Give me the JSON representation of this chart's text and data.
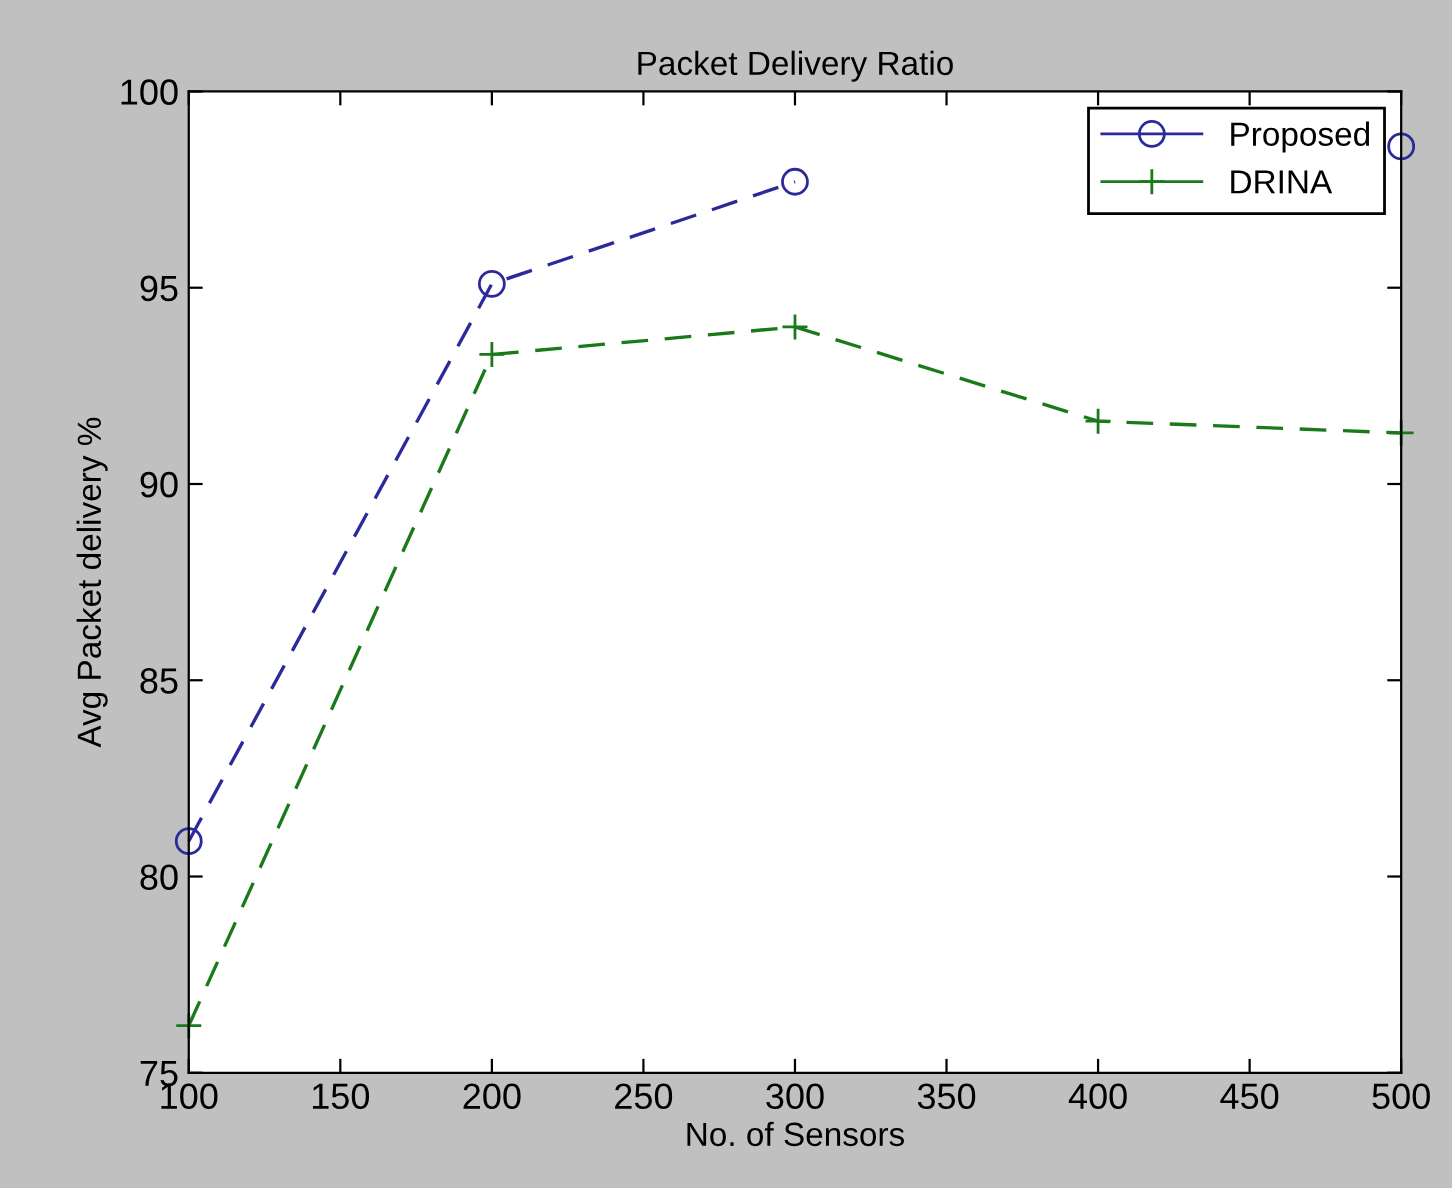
{
  "chart_data": {
    "type": "line",
    "title": "Packet Delivery Ratio",
    "xlabel": "No. of Sensors",
    "ylabel": "Avg Packet delivery %",
    "x": [
      100,
      200,
      300,
      400,
      500
    ],
    "series": [
      {
        "name": "Proposed",
        "color": "#2a2a9a",
        "marker": "circle",
        "values": [
          80.9,
          95.1,
          97.7,
          null,
          98.6
        ]
      },
      {
        "name": "DRINA",
        "color": "#1a7a1a",
        "marker": "cross",
        "values": [
          76.2,
          93.3,
          94.0,
          91.6,
          91.3
        ]
      }
    ],
    "line_style": "dashed",
    "xlim": [
      100,
      500
    ],
    "ylim": [
      75,
      100
    ],
    "xticks": [
      100,
      150,
      200,
      250,
      300,
      350,
      400,
      450,
      500
    ],
    "yticks": [
      75,
      80,
      85,
      90,
      95,
      100
    ],
    "grid": false,
    "legend": "top right"
  }
}
